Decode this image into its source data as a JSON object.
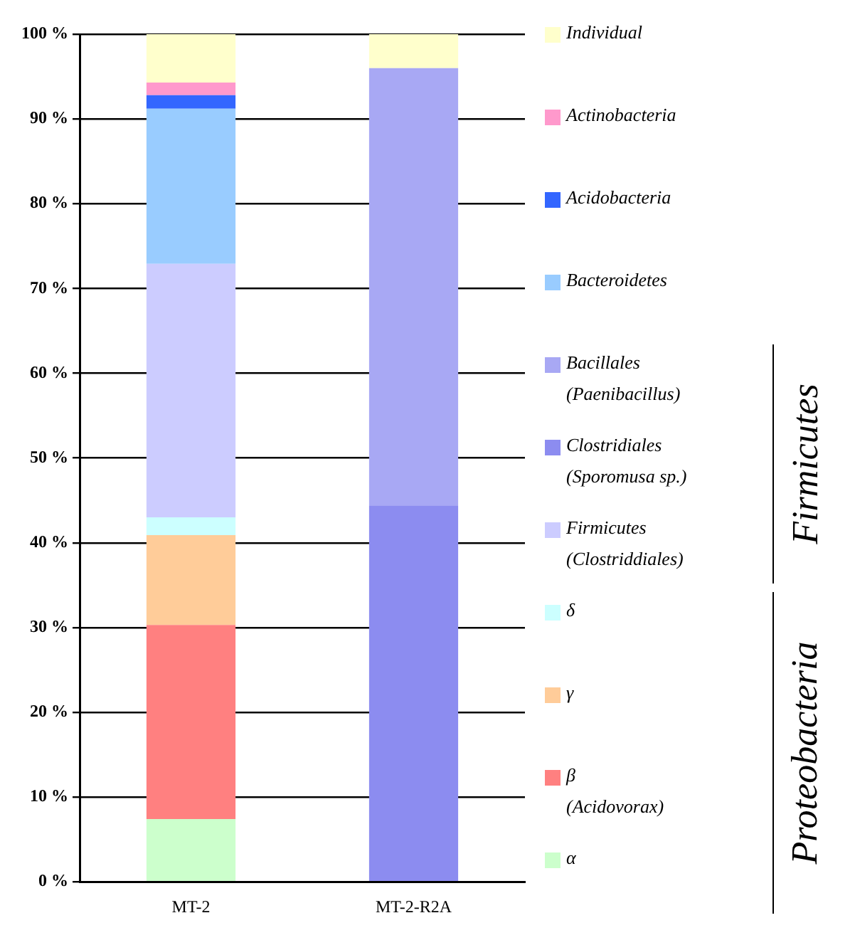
{
  "chart_data": {
    "type": "bar",
    "stacked": true,
    "categories": [
      "MT-2",
      "MT-2-R2A"
    ],
    "series": [
      {
        "name": "α",
        "color": "#ccffcc",
        "values": [
          7.4,
          null
        ]
      },
      {
        "name": "β\n(Acidovorax)",
        "color": "#ff8080",
        "values": [
          22.9,
          null
        ]
      },
      {
        "name": "γ",
        "color": "#ffcc99",
        "values": [
          10.6,
          null
        ]
      },
      {
        "name": "δ",
        "color": "#ccffff",
        "values": [
          2.1,
          null
        ]
      },
      {
        "name": "Firmicutes\n(Clostriddiales)",
        "color": "#ccccff",
        "values": [
          29.9,
          null
        ]
      },
      {
        "name": "Clostridiales\n(Sporomusa sp.)",
        "color": "#8c8cf0",
        "values": [
          null,
          44.4
        ]
      },
      {
        "name": "Bacillales\n(Paenibacillus)",
        "color": "#a8a8f4",
        "values": [
          null,
          51.6
        ]
      },
      {
        "name": "Bacteroidetes",
        "color": "#99ccff",
        "values": [
          18.3,
          null
        ]
      },
      {
        "name": "Acidobacteria",
        "color": "#3366ff",
        "values": [
          1.6,
          null
        ]
      },
      {
        "name": "Actinobacteria",
        "color": "#ff99cc",
        "values": [
          1.5,
          null
        ]
      },
      {
        "name": "Individual",
        "color": "#ffffcc",
        "values": [
          5.7,
          4.0
        ]
      }
    ],
    "ylim": [
      0,
      100
    ],
    "yticks": [
      {
        "value": 0,
        "label": "0 %"
      },
      {
        "value": 10,
        "label": "10 %"
      },
      {
        "value": 20,
        "label": "20 %"
      },
      {
        "value": 30,
        "label": "30 %"
      },
      {
        "value": 40,
        "label": "40 %"
      },
      {
        "value": 50,
        "label": "50 %"
      },
      {
        "value": 60,
        "label": "60 %"
      },
      {
        "value": 70,
        "label": "70 %"
      },
      {
        "value": 80,
        "label": "80 %"
      },
      {
        "value": 90,
        "label": "90 %"
      },
      {
        "value": 100,
        "label": "100 %"
      }
    ],
    "grid": "y",
    "legend": "right",
    "annotations": [
      "Firmicutes",
      "Proteobacteria"
    ]
  }
}
